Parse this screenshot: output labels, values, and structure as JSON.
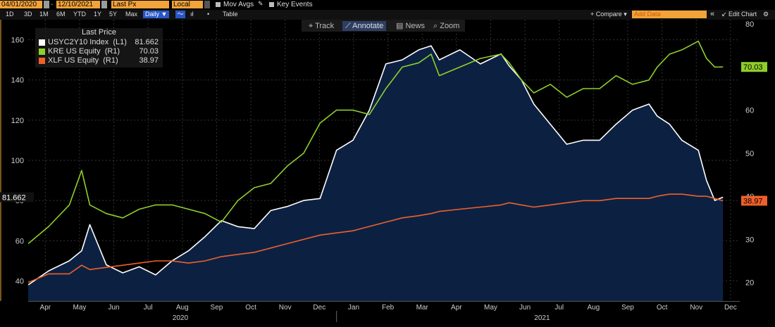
{
  "toolbar": {
    "start_date": "04/01/2020",
    "end_date": "12/10/2021",
    "price_field": "Last Px",
    "currency": "Local CCY",
    "mov_avgs": "Mov Avgs",
    "key_events": "Key Events",
    "ranges": [
      "1D",
      "3D",
      "1M",
      "6M",
      "YTD",
      "1Y",
      "5Y",
      "Max"
    ],
    "frequency": "Daily",
    "table_label": "Table",
    "compare_label": "+ Compare",
    "add_data_placeholder": "Add Data",
    "edit_chart_label": "Edit Chart",
    "chart_tools": [
      "Track",
      "Annotate",
      "News",
      "Zoom"
    ],
    "active_tool": "Annotate"
  },
  "colors": {
    "background": "#000000",
    "orange_accent": "#f2a33a",
    "usyc": "#ffffff",
    "kre": "#8fcf2a",
    "xlf": "#f0602a",
    "area_fill": "#0c2142"
  },
  "chart_data": {
    "type": "line",
    "legend": {
      "title": "Last Price",
      "placement": "top-left",
      "entries": [
        {
          "name": "USYC2Y10 Index  (L1)",
          "value": "81.662",
          "color": "#ffffff"
        },
        {
          "name": "KRE US Equity  (R1)",
          "value": "70.03",
          "color": "#8fcf2a"
        },
        {
          "name": "XLF US Equity  (R1)",
          "value": "38.97",
          "color": "#f0602a"
        }
      ]
    },
    "x_tick_labels": [
      "Apr",
      "May",
      "Jun",
      "Jul",
      "Aug",
      "Sep",
      "Oct",
      "Nov",
      "Dec",
      "Jan",
      "Feb",
      "Mar",
      "Apr",
      "May",
      "Jun",
      "Jul",
      "Aug",
      "Sep",
      "Oct",
      "Nov",
      "Dec"
    ],
    "year_labels": [
      "2020",
      "2021"
    ],
    "left_axis": {
      "ticks": [
        40,
        60,
        80,
        100,
        120,
        140,
        160
      ],
      "range": [
        30,
        170
      ]
    },
    "right_axis": {
      "ticks": [
        20,
        30,
        40,
        50,
        60,
        70,
        80
      ],
      "range": [
        15.7,
        81.0
      ]
    },
    "last_value_labels": {
      "left": "81.662",
      "kre": "70.03",
      "xlf": "38.97"
    },
    "grid": true,
    "series": [
      {
        "name": "USYC2Y10 Index",
        "axis": "left",
        "area": true,
        "x": [
          2020.25,
          2020.3,
          2020.35,
          2020.38,
          2020.4,
          2020.44,
          2020.48,
          2020.52,
          2020.56,
          2020.6,
          2020.64,
          2020.68,
          2020.72,
          2020.76,
          2020.8,
          2020.84,
          2020.88,
          2020.92,
          2020.96,
          2021.0,
          2021.04,
          2021.08,
          2021.12,
          2021.16,
          2021.2,
          2021.23,
          2021.25,
          2021.3,
          2021.35,
          2021.4,
          2021.42,
          2021.45,
          2021.48,
          2021.52,
          2021.56,
          2021.6,
          2021.64,
          2021.68,
          2021.72,
          2021.76,
          2021.78,
          2021.81,
          2021.84,
          2021.88,
          2021.9,
          2021.92,
          2021.94
        ],
        "values": [
          38,
          45,
          50,
          55,
          68,
          48,
          44,
          47,
          43,
          50,
          55,
          62,
          70,
          67,
          66,
          75,
          77,
          80,
          81,
          105,
          110,
          125,
          148,
          150,
          155,
          157,
          150,
          155,
          148,
          153,
          147,
          140,
          128,
          118,
          108,
          110,
          110,
          118,
          125,
          128,
          122,
          118,
          110,
          105,
          90,
          80,
          81.662
        ]
      },
      {
        "name": "KRE US Equity",
        "axis": "right",
        "area": false,
        "x": [
          2020.25,
          2020.3,
          2020.35,
          2020.38,
          2020.4,
          2020.44,
          2020.48,
          2020.52,
          2020.56,
          2020.6,
          2020.64,
          2020.68,
          2020.72,
          2020.76,
          2020.8,
          2020.84,
          2020.88,
          2020.92,
          2020.96,
          2021.0,
          2021.04,
          2021.08,
          2021.12,
          2021.16,
          2021.2,
          2021.23,
          2021.25,
          2021.3,
          2021.35,
          2021.4,
          2021.42,
          2021.45,
          2021.48,
          2021.52,
          2021.56,
          2021.6,
          2021.64,
          2021.68,
          2021.72,
          2021.76,
          2021.78,
          2021.81,
          2021.84,
          2021.88,
          2021.9,
          2021.92,
          2021.94
        ],
        "values": [
          29,
          33,
          38,
          46,
          38,
          36,
          35,
          37,
          38,
          38,
          37,
          36,
          34,
          39,
          42,
          43,
          47,
          50,
          57,
          60,
          60,
          59,
          65,
          70,
          71,
          73,
          68,
          70,
          72,
          73,
          71,
          67,
          64,
          66,
          63,
          65,
          65,
          68,
          66,
          67,
          70,
          73,
          74,
          76,
          72,
          70,
          70.03
        ]
      },
      {
        "name": "XLF US Equity",
        "axis": "right",
        "area": false,
        "x": [
          2020.25,
          2020.3,
          2020.35,
          2020.38,
          2020.4,
          2020.44,
          2020.48,
          2020.52,
          2020.56,
          2020.6,
          2020.64,
          2020.68,
          2020.72,
          2020.76,
          2020.8,
          2020.84,
          2020.88,
          2020.92,
          2020.96,
          2021.0,
          2021.04,
          2021.08,
          2021.12,
          2021.16,
          2021.2,
          2021.23,
          2021.25,
          2021.3,
          2021.35,
          2021.4,
          2021.42,
          2021.45,
          2021.48,
          2021.52,
          2021.56,
          2021.6,
          2021.64,
          2021.68,
          2021.72,
          2021.76,
          2021.78,
          2021.81,
          2021.84,
          2021.88,
          2021.9,
          2021.92,
          2021.94
        ],
        "values": [
          20,
          22,
          22,
          24,
          23,
          23.5,
          24,
          24.5,
          25,
          25,
          24.5,
          25,
          26,
          26.5,
          27,
          28,
          29,
          30,
          31,
          31.5,
          32,
          33,
          34,
          35,
          35.5,
          36,
          36.5,
          37,
          37.5,
          38,
          38.5,
          38,
          37.5,
          38,
          38.5,
          39,
          39,
          39.5,
          39.5,
          39.5,
          40,
          40.5,
          40.5,
          40,
          40,
          39.5,
          38.97
        ]
      }
    ]
  }
}
